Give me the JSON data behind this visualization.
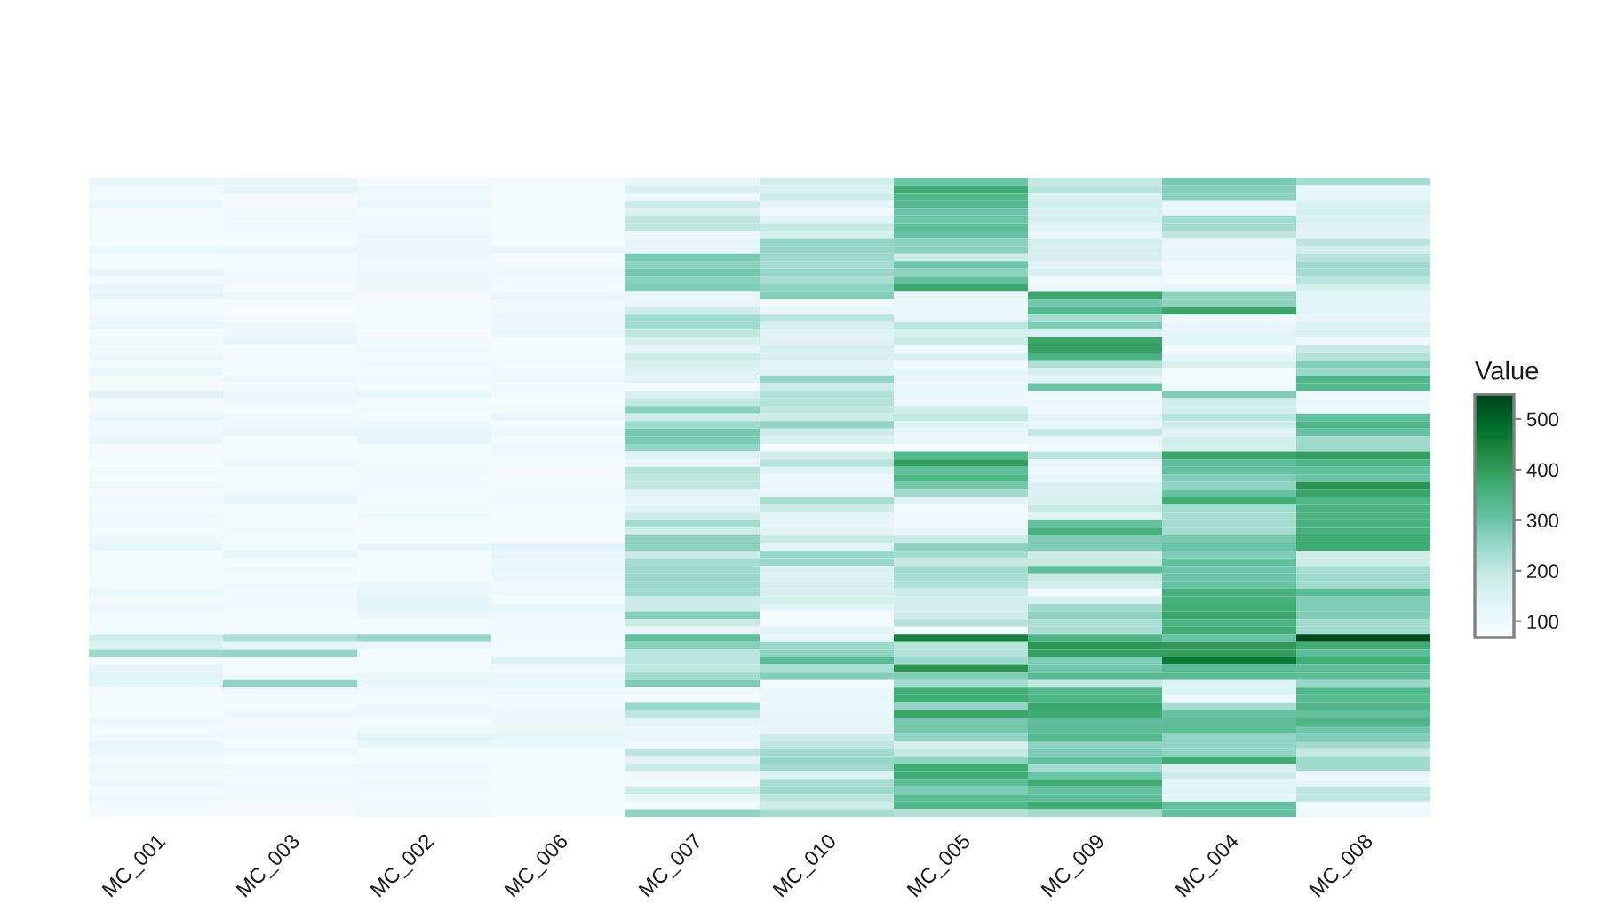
{
  "chart_data": {
    "type": "heatmap",
    "categories": [
      "MC_001",
      "MC_003",
      "MC_002",
      "MC_006",
      "MC_007",
      "MC_010",
      "MC_005",
      "MC_009",
      "MC_004",
      "MC_008"
    ],
    "y_categories": [
      null,
      null,
      null,
      null,
      null,
      null,
      null,
      null,
      null,
      null,
      null,
      null,
      null,
      null,
      null,
      null,
      null,
      null,
      null,
      null,
      null,
      null,
      null,
      null,
      null,
      null,
      null,
      null,
      null,
      null,
      null,
      null,
      null,
      null,
      null,
      null,
      null,
      null,
      null,
      null,
      null,
      null,
      null,
      null,
      null,
      null,
      null,
      null,
      null,
      null,
      null,
      null,
      null,
      null,
      null,
      null,
      null,
      null,
      null,
      null,
      null,
      null,
      null,
      null,
      null,
      null,
      null,
      null,
      null,
      null,
      null,
      null,
      null,
      null,
      null,
      null,
      null,
      null,
      null,
      null,
      null,
      null,
      null,
      null
    ],
    "tick_labels": "x",
    "clabel": "Value",
    "clim": [
      68,
      549
    ],
    "cticks": [
      100,
      200,
      300,
      400,
      500
    ],
    "cells": [
      [
        118,
        128,
        88,
        92,
        120,
        180,
        300,
        200,
        285,
        236
      ],
      [
        95,
        126,
        100,
        82,
        170,
        150,
        375,
        210,
        272,
        122
      ],
      [
        88,
        82,
        95,
        85,
        100,
        185,
        345,
        160,
        266,
        130
      ],
      [
        112,
        85,
        120,
        85,
        185,
        130,
        335,
        175,
        112,
        165
      ],
      [
        85,
        100,
        92,
        82,
        150,
        95,
        300,
        160,
        115,
        170
      ],
      [
        90,
        88,
        95,
        85,
        205,
        140,
        300,
        162,
        240,
        158
      ],
      [
        90,
        100,
        92,
        82,
        205,
        195,
        320,
        140,
        242,
        142
      ],
      [
        88,
        88,
        115,
        85,
        105,
        165,
        310,
        112,
        205,
        135
      ],
      [
        82,
        90,
        100,
        88,
        120,
        255,
        265,
        168,
        115,
        208
      ],
      [
        115,
        118,
        100,
        118,
        125,
        255,
        270,
        170,
        117,
        176
      ],
      [
        88,
        90,
        104,
        70,
        290,
        245,
        190,
        170,
        117,
        215
      ],
      [
        85,
        88,
        95,
        92,
        265,
        235,
        298,
        135,
        95,
        240
      ],
      [
        126,
        90,
        100,
        98,
        295,
        250,
        262,
        160,
        100,
        236
      ],
      [
        82,
        95,
        102,
        92,
        268,
        230,
        315,
        95,
        85,
        210
      ],
      [
        128,
        82,
        100,
        88,
        280,
        260,
        380,
        108,
        122,
        166
      ],
      [
        122,
        100,
        78,
        118,
        115,
        275,
        115,
        385,
        265,
        132
      ],
      [
        88,
        85,
        84,
        90,
        120,
        85,
        115,
        295,
        265,
        132
      ],
      [
        90,
        72,
        90,
        92,
        180,
        115,
        115,
        335,
        380,
        132
      ],
      [
        92,
        90,
        85,
        110,
        240,
        210,
        115,
        238,
        100,
        112
      ],
      [
        115,
        100,
        88,
        100,
        240,
        165,
        210,
        280,
        117,
        150
      ],
      [
        90,
        105,
        72,
        115,
        205,
        140,
        165,
        160,
        135,
        158
      ],
      [
        95,
        118,
        92,
        88,
        165,
        140,
        190,
        385,
        137,
        95
      ],
      [
        85,
        88,
        100,
        82,
        130,
        170,
        105,
        392,
        90,
        192
      ],
      [
        100,
        90,
        88,
        88,
        190,
        160,
        165,
        355,
        126,
        215
      ],
      [
        88,
        88,
        92,
        90,
        165,
        135,
        90,
        225,
        162,
        275
      ],
      [
        122,
        88,
        88,
        105,
        150,
        140,
        125,
        172,
        90,
        248
      ],
      [
        78,
        110,
        92,
        100,
        135,
        255,
        115,
        135,
        82,
        345
      ],
      [
        80,
        95,
        88,
        95,
        85,
        185,
        115,
        305,
        100,
        338
      ],
      [
        142,
        100,
        130,
        88,
        160,
        220,
        100,
        100,
        280,
        100
      ],
      [
        75,
        100,
        85,
        85,
        200,
        220,
        100,
        110,
        180,
        112
      ],
      [
        82,
        90,
        95,
        92,
        270,
        205,
        175,
        102,
        176,
        106
      ],
      [
        115,
        105,
        88,
        118,
        180,
        190,
        200,
        135,
        210,
        318
      ],
      [
        100,
        100,
        100,
        92,
        240,
        255,
        140,
        130,
        183,
        345
      ],
      [
        97,
        112,
        122,
        105,
        290,
        185,
        120,
        200,
        142,
        308
      ],
      [
        120,
        88,
        122,
        90,
        285,
        160,
        115,
        110,
        175,
        242
      ],
      [
        85,
        82,
        88,
        100,
        255,
        80,
        80,
        95,
        172,
        248
      ],
      [
        92,
        88,
        85,
        92,
        145,
        175,
        340,
        210,
        385,
        395
      ],
      [
        80,
        110,
        92,
        88,
        110,
        215,
        395,
        120,
        320,
        348
      ],
      [
        95,
        88,
        98,
        76,
        215,
        140,
        320,
        95,
        315,
        318
      ],
      [
        82,
        82,
        88,
        88,
        205,
        115,
        345,
        120,
        280,
        305
      ],
      [
        100,
        88,
        92,
        85,
        205,
        115,
        292,
        155,
        258,
        410
      ],
      [
        80,
        100,
        88,
        92,
        140,
        115,
        240,
        155,
        310,
        385
      ],
      [
        92,
        118,
        85,
        92,
        122,
        232,
        140,
        165,
        370,
        345
      ],
      [
        88,
        82,
        92,
        88,
        138,
        190,
        85,
        195,
        238,
        352
      ],
      [
        98,
        82,
        100,
        85,
        186,
        132,
        92,
        140,
        236,
        352
      ],
      [
        98,
        82,
        85,
        85,
        242,
        122,
        92,
        310,
        236,
        358
      ],
      [
        82,
        92,
        88,
        82,
        190,
        140,
        120,
        360,
        232,
        358
      ],
      [
        95,
        88,
        90,
        85,
        262,
        195,
        192,
        280,
        288,
        372
      ],
      [
        122,
        92,
        120,
        130,
        262,
        132,
        262,
        280,
        306,
        372
      ],
      [
        85,
        118,
        88,
        122,
        192,
        250,
        236,
        183,
        280,
        180
      ],
      [
        88,
        88,
        90,
        110,
        236,
        250,
        198,
        200,
        316,
        190
      ],
      [
        82,
        98,
        85,
        112,
        244,
        155,
        240,
        322,
        300,
        232
      ],
      [
        88,
        85,
        88,
        110,
        250,
        155,
        232,
        198,
        300,
        242
      ],
      [
        82,
        95,
        110,
        95,
        250,
        165,
        222,
        175,
        308,
        242
      ],
      [
        118,
        88,
        116,
        100,
        244,
        170,
        183,
        90,
        362,
        330
      ],
      [
        85,
        95,
        132,
        88,
        186,
        170,
        172,
        162,
        362,
        277
      ],
      [
        108,
        90,
        136,
        122,
        186,
        132,
        172,
        240,
        368,
        277
      ],
      [
        92,
        82,
        110,
        100,
        275,
        82,
        180,
        262,
        385,
        277
      ],
      [
        88,
        88,
        88,
        92,
        192,
        88,
        215,
        226,
        352,
        240
      ],
      [
        88,
        88,
        88,
        92,
        118,
        132,
        82,
        226,
        370,
        240
      ],
      [
        182,
        225,
        250,
        92,
        318,
        130,
        450,
        348,
        306,
        545
      ],
      [
        150,
        118,
        118,
        90,
        270,
        245,
        216,
        410,
        405,
        370
      ],
      [
        246,
        255,
        88,
        88,
        208,
        262,
        218,
        392,
        395,
        320
      ],
      [
        85,
        88,
        88,
        148,
        208,
        330,
        244,
        284,
        470,
        370
      ],
      [
        130,
        78,
        85,
        95,
        207,
        228,
        410,
        295,
        330,
        325
      ],
      [
        140,
        100,
        108,
        108,
        242,
        275,
        280,
        330,
        330,
        322
      ],
      [
        138,
        258,
        118,
        116,
        277,
        78,
        240,
        200,
        150,
        250
      ],
      [
        82,
        100,
        92,
        100,
        95,
        112,
        370,
        340,
        152,
        345
      ],
      [
        88,
        92,
        88,
        92,
        90,
        115,
        370,
        345,
        100,
        330
      ],
      [
        82,
        82,
        100,
        88,
        250,
        112,
        256,
        380,
        230,
        345
      ],
      [
        88,
        110,
        100,
        100,
        207,
        117,
        385,
        370,
        310,
        316
      ],
      [
        100,
        85,
        90,
        106,
        138,
        122,
        292,
        320,
        322,
        345
      ],
      [
        88,
        88,
        100,
        110,
        112,
        117,
        293,
        322,
        326,
        296
      ],
      [
        95,
        92,
        132,
        130,
        117,
        183,
        260,
        340,
        256,
        277
      ],
      [
        117,
        88,
        128,
        116,
        100,
        208,
        170,
        260,
        256,
        240
      ],
      [
        100,
        100,
        88,
        88,
        208,
        242,
        198,
        282,
        258,
        194
      ],
      [
        88,
        70,
        88,
        90,
        132,
        252,
        258,
        316,
        372,
        240
      ],
      [
        100,
        100,
        95,
        82,
        190,
        240,
        370,
        240,
        160,
        240
      ],
      [
        82,
        92,
        88,
        85,
        100,
        150,
        370,
        304,
        186,
        100
      ],
      [
        100,
        88,
        100,
        88,
        92,
        232,
        322,
        370,
        132,
        122
      ],
      [
        88,
        92,
        92,
        85,
        190,
        246,
        277,
        316,
        132,
        207
      ],
      [
        98,
        100,
        88,
        85,
        122,
        212,
        330,
        320,
        122,
        207
      ],
      [
        90,
        82,
        92,
        82,
        80,
        190,
        340,
        370,
        312,
        95
      ],
      [
        85,
        88,
        100,
        85,
        258,
        236,
        218,
        240,
        312,
        100
      ]
    ]
  }
}
